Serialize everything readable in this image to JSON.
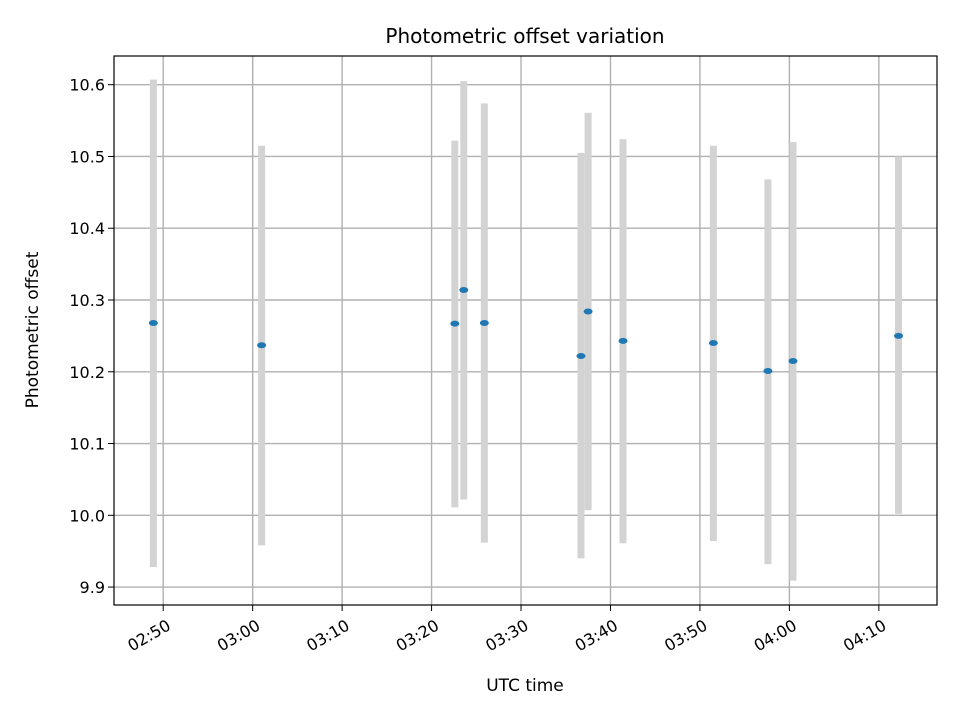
{
  "chart_data": {
    "type": "scatter",
    "title": "Photometric offset variation",
    "xlabel": "UTC time",
    "ylabel": "Photometric offset",
    "grid": true,
    "xlim": [
      "02:44:30",
      "04:16:30"
    ],
    "ylim": [
      9.875,
      10.64
    ],
    "x_ticks": [
      "02:50",
      "03:00",
      "03:10",
      "03:20",
      "03:30",
      "03:40",
      "03:50",
      "04:00",
      "04:10"
    ],
    "y_ticks": [
      9.9,
      10.0,
      10.1,
      10.2,
      10.3,
      10.4,
      10.5,
      10.6
    ],
    "marker_color": "#1f77b4",
    "errorbar_color": "#d3d3d3",
    "points": [
      {
        "time": "02:48:54",
        "value": 10.268,
        "low": 9.928,
        "high": 10.607
      },
      {
        "time": "03:01:00",
        "value": 10.237,
        "low": 9.958,
        "high": 10.515
      },
      {
        "time": "03:22:36",
        "value": 10.267,
        "low": 10.011,
        "high": 10.522
      },
      {
        "time": "03:23:36",
        "value": 10.314,
        "low": 10.022,
        "high": 10.605
      },
      {
        "time": "03:25:54",
        "value": 10.268,
        "low": 9.962,
        "high": 10.574
      },
      {
        "time": "03:36:42",
        "value": 10.222,
        "low": 9.94,
        "high": 10.505
      },
      {
        "time": "03:37:30",
        "value": 10.284,
        "low": 10.007,
        "high": 10.561
      },
      {
        "time": "03:41:24",
        "value": 10.243,
        "low": 9.961,
        "high": 10.524
      },
      {
        "time": "03:51:30",
        "value": 10.24,
        "low": 9.964,
        "high": 10.515
      },
      {
        "time": "03:57:36",
        "value": 10.201,
        "low": 9.932,
        "high": 10.468
      },
      {
        "time": "04:00:24",
        "value": 10.215,
        "low": 9.909,
        "high": 10.52
      },
      {
        "time": "04:12:12",
        "value": 10.25,
        "low": 10.002,
        "high": 10.5
      }
    ]
  }
}
